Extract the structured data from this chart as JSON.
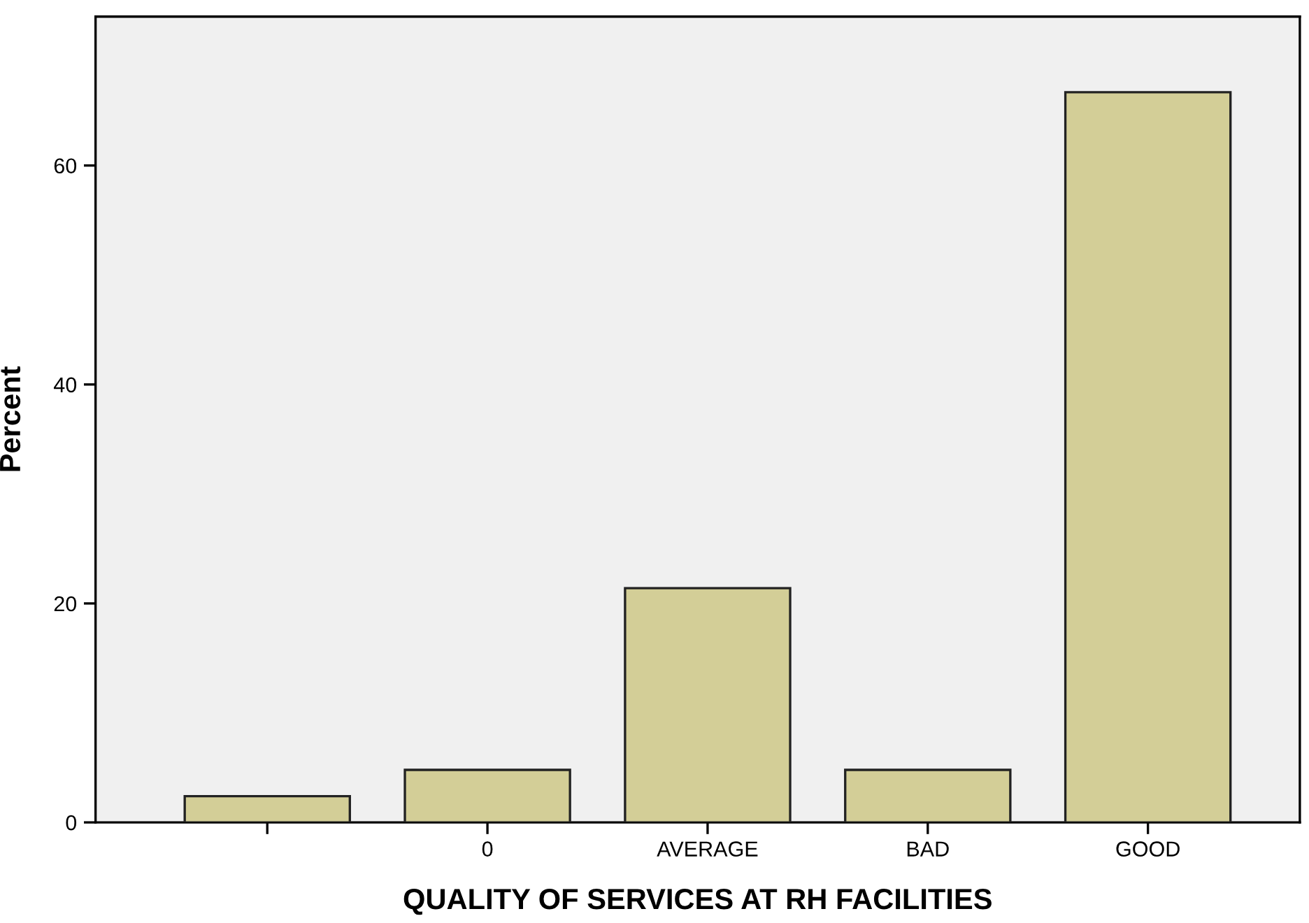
{
  "chart_data": {
    "type": "bar",
    "xlabel": "QUALITY OF SERVICES AT RH FACILITIES",
    "ylabel": "Percent",
    "categories": [
      null,
      "0",
      "AVERAGE",
      "BAD",
      "GOOD"
    ],
    "values": [
      2.4,
      4.8,
      21.4,
      4.8,
      66.7
    ],
    "color": "#d3ce97",
    "ylim": [
      0,
      73.6
    ],
    "yticks": [
      0,
      20,
      40,
      60
    ],
    "grid": false
  }
}
